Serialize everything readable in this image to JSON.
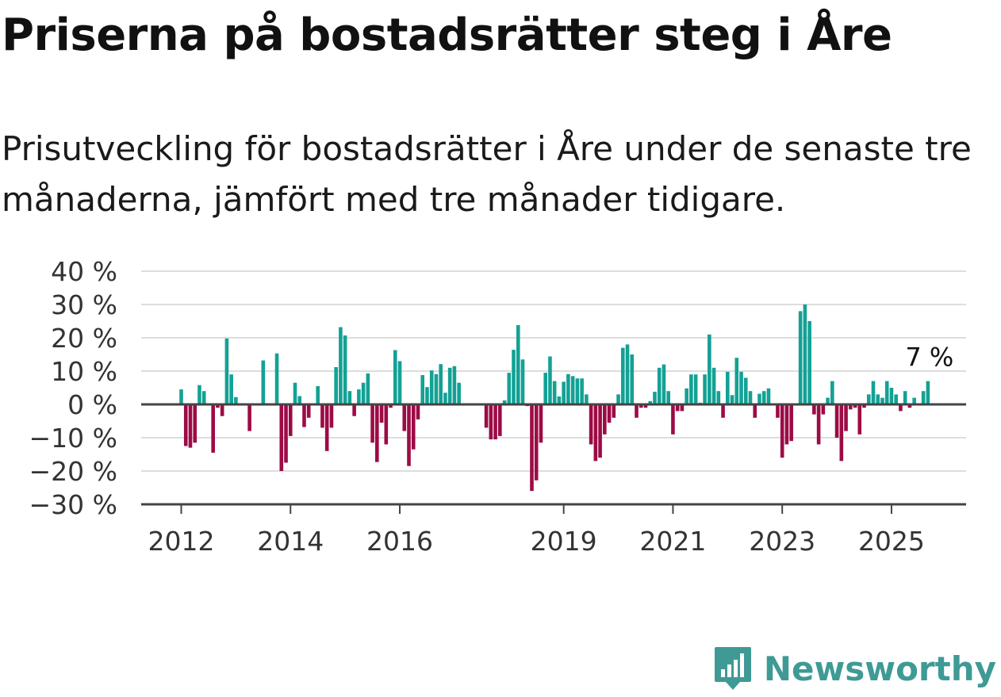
{
  "title": "Priserna på bostadsrätter steg i Åre",
  "subtitle": "Prisutveckling för bostadsrätter i Åre under de senaste tre månaderna, jämfört med tre månader tidigare.",
  "brand": "Newsworthy",
  "colors": {
    "positive": "#13a195",
    "negative": "#9c0b45",
    "brand": "#3f9a95",
    "grid": "#dddddd",
    "axis": "#444444"
  },
  "chart_data": {
    "type": "bar",
    "unit": "%",
    "ylim": [
      -30,
      40
    ],
    "y_ticks": [
      {
        "value": 40,
        "label": "40 %"
      },
      {
        "value": 30,
        "label": "30 %"
      },
      {
        "value": 20,
        "label": "20 %"
      },
      {
        "value": 10,
        "label": "10 %"
      },
      {
        "value": 0,
        "label": "0 %"
      },
      {
        "value": -10,
        "label": "−10 %"
      },
      {
        "value": -20,
        "label": "−20 %"
      },
      {
        "value": -30,
        "label": "−30 %"
      }
    ],
    "x_ticks": [
      {
        "year": 2012,
        "label": "2012"
      },
      {
        "year": 2014,
        "label": "2014"
      },
      {
        "year": 2016,
        "label": "2016"
      },
      {
        "year": 2019,
        "label": "2019"
      },
      {
        "year": 2021,
        "label": "2021"
      },
      {
        "year": 2023,
        "label": "2023"
      },
      {
        "year": 2025,
        "label": "2025"
      }
    ],
    "grid": true,
    "end_label": "7 %",
    "start_period": "2012-01",
    "values": [
      4.5,
      -12.5,
      -13,
      -11.5,
      5.8,
      4,
      0,
      -14.5,
      -1,
      -3.5,
      19.8,
      9,
      2.2,
      0,
      0,
      -8,
      0,
      0,
      13.2,
      0,
      0,
      15.3,
      -20,
      -17.5,
      -9.5,
      6.5,
      2.5,
      -6.8,
      -4,
      0,
      5.5,
      -7,
      -14,
      -7,
      11.2,
      23.2,
      20.7,
      4,
      -3.5,
      4.5,
      6.5,
      9.3,
      -11.5,
      -17.3,
      -5.5,
      -12,
      -1,
      16.3,
      13,
      -8,
      -18.5,
      -13.5,
      -4.5,
      8.8,
      5.2,
      10.2,
      9.1,
      12.1,
      3.5,
      11,
      11.5,
      6.5,
      0,
      0,
      0,
      0,
      0,
      -7,
      -10.5,
      -10.5,
      -9.5,
      1.2,
      9.5,
      16.4,
      23.8,
      13.5,
      -0.5,
      -26,
      -22.8,
      -11.5,
      9.5,
      14.4,
      7,
      2.4,
      6.8,
      9.1,
      8.5,
      7.8,
      7.8,
      3,
      -12,
      -17,
      -16,
      -9,
      -5.5,
      -4,
      3,
      17,
      18,
      15,
      -4,
      -1,
      -1,
      1,
      3.8,
      11,
      12,
      4,
      -9,
      -2,
      -2,
      4.8,
      9,
      9,
      0.5,
      9,
      21,
      11,
      4,
      -4,
      9.8,
      2.8,
      14,
      9.8,
      8,
      4,
      -4,
      3.2,
      4,
      4.8,
      0,
      -4,
      -16,
      -12,
      -11,
      0,
      28,
      30,
      25,
      -3,
      -12,
      -3,
      2,
      7,
      -10,
      -17,
      -8,
      -1.5,
      -1,
      -9,
      -1,
      3,
      7,
      3,
      2,
      7,
      5,
      3,
      -2,
      4,
      -1,
      2,
      0,
      4,
      7
    ]
  }
}
